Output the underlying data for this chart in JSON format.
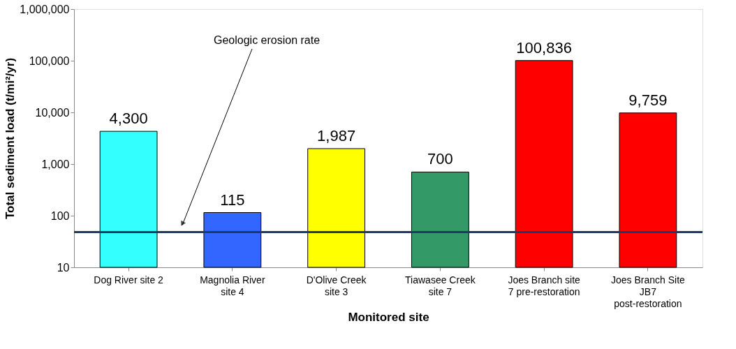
{
  "chart_data": {
    "type": "bar",
    "xlabel": "Monitored site",
    "ylabel": "Total sediment load (t/mi²/yr)",
    "categories": [
      "Dog River site 2",
      "Magnolia River site 4",
      "D'Olive Creek site 3",
      "Tiawasee Creek site 7",
      "Joes Branch site 7 pre-restoration",
      "Joes Branch Site JB7 post-restoration"
    ],
    "values": [
      4300,
      115,
      1987,
      700,
      100836,
      9759
    ],
    "colors": [
      "#33ffff",
      "#3366ff",
      "#ffff00",
      "#339966",
      "#ff0000",
      "#ff0000"
    ],
    "value_labels": [
      "4,300",
      "115",
      "1,987",
      "700",
      "100,836",
      "9,759"
    ],
    "log": "y",
    "ylim": [
      10,
      1000000
    ],
    "yticks": [
      {
        "value": 10,
        "label": "10"
      },
      {
        "value": 100,
        "label": "100"
      },
      {
        "value": 1000,
        "label": "1,000"
      },
      {
        "value": 10000,
        "label": "10,000"
      },
      {
        "value": 100000,
        "label": "100,000"
      },
      {
        "value": 1000000,
        "label": "1,000,000"
      }
    ],
    "grid": false,
    "ref_lines": [
      {
        "axis": "y",
        "value": 48,
        "label": "Geologic erosion rate",
        "color": "#1f3864"
      }
    ]
  }
}
